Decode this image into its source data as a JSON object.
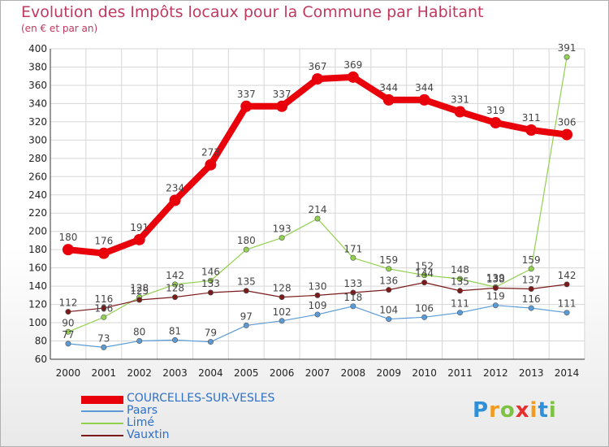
{
  "title": "Evolution des Impôts locaux pour la Commune par Habitant",
  "subtitle": "(en € et par an)",
  "logo": {
    "text": "Proxiti",
    "colors": [
      "#2f8fd8",
      "#f39a1f",
      "#7dc242",
      "#e53030",
      "#f39a1f",
      "#2f8fd8",
      "#7dc242"
    ]
  },
  "chart_data": {
    "type": "line",
    "x": [
      2000,
      2001,
      2002,
      2003,
      2004,
      2005,
      2006,
      2007,
      2008,
      2009,
      2010,
      2011,
      2012,
      2013,
      2014
    ],
    "ylim": [
      60,
      400
    ],
    "yticks": [
      60,
      80,
      100,
      120,
      140,
      160,
      180,
      200,
      220,
      240,
      260,
      280,
      300,
      320,
      340,
      360,
      380,
      400
    ],
    "grid": true,
    "legend_position": "bottom-left",
    "series": [
      {
        "name": "COURCELLES-SUR-VESLES",
        "color": "#e8000b",
        "values": [
          180,
          176,
          191,
          234,
          273,
          337,
          337,
          367,
          369,
          344,
          344,
          331,
          319,
          311,
          306
        ]
      },
      {
        "name": "Paars",
        "color": "#5b9bd5",
        "values": [
          77,
          73,
          80,
          81,
          79,
          97,
          102,
          109,
          118,
          104,
          106,
          111,
          119,
          116,
          111
        ]
      },
      {
        "name": "Limé",
        "color": "#92d050",
        "values": [
          90,
          106,
          128,
          142,
          146,
          180,
          193,
          214,
          171,
          159,
          152,
          148,
          139,
          159,
          391
        ]
      },
      {
        "name": "Vauxtin",
        "color": "#7b1a1a",
        "values": [
          112,
          116,
          125,
          128,
          133,
          135,
          128,
          130,
          133,
          136,
          144,
          135,
          138,
          137,
          142
        ]
      }
    ]
  }
}
